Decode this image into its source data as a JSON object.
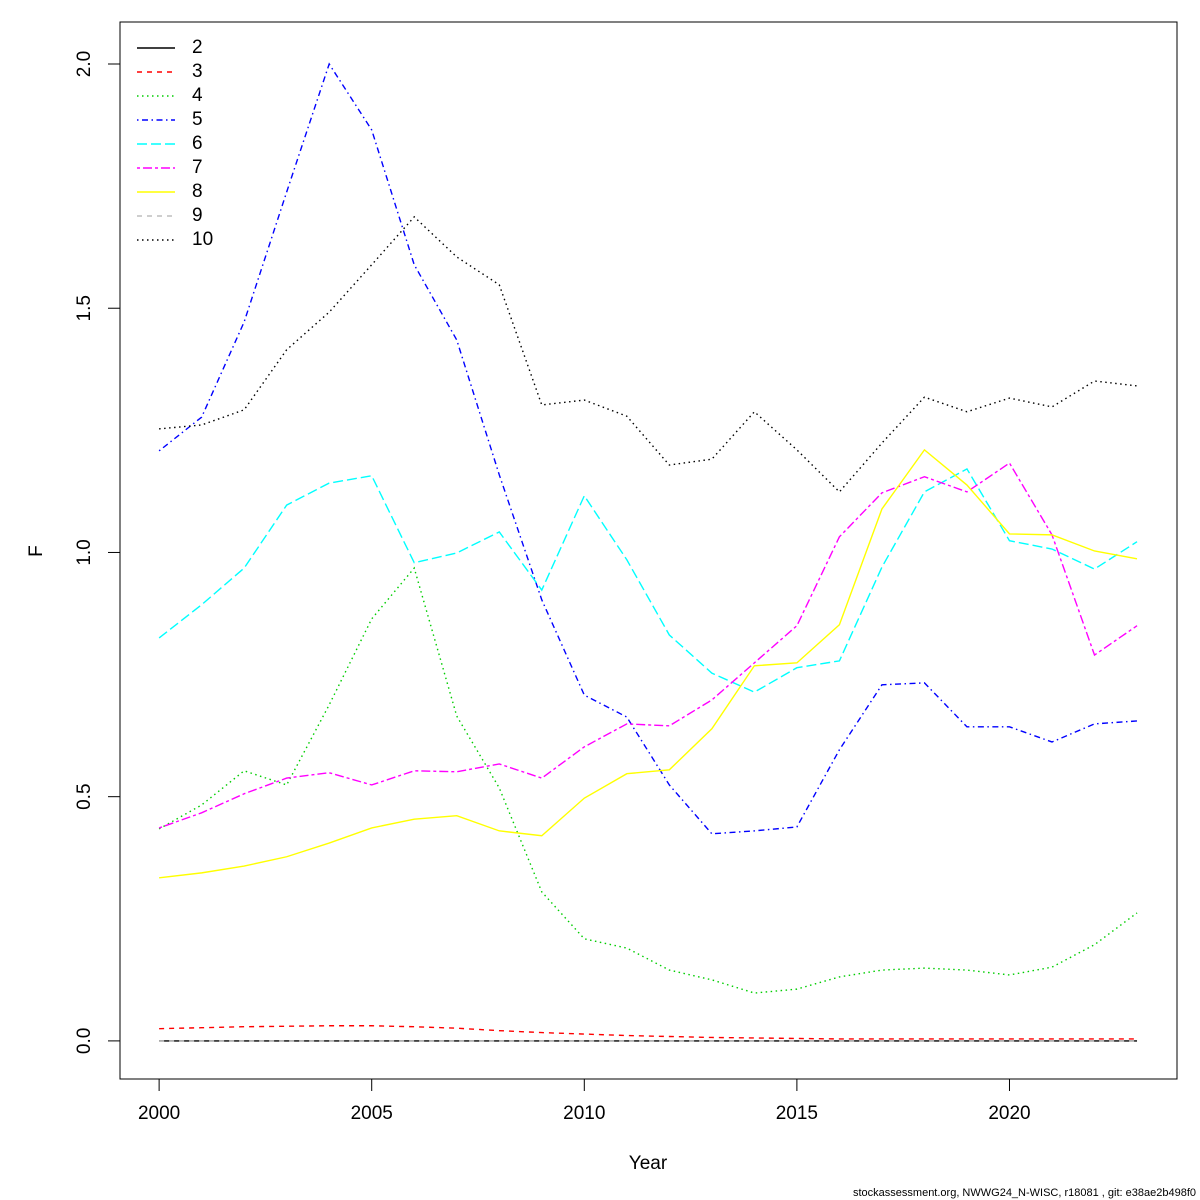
{
  "chart_data": {
    "type": "line",
    "x_label": "Year",
    "y_label": "F",
    "footnote": "stockassessment.org, NWWG24_N-WISC, r18081 , git: e38ae2b498f0",
    "x": [
      2000,
      2001,
      2002,
      2003,
      2004,
      2005,
      2006,
      2007,
      2008,
      2009,
      2010,
      2011,
      2012,
      2013,
      2014,
      2015,
      2016,
      2017,
      2018,
      2019,
      2020,
      2021,
      2022,
      2023
    ],
    "xlim": [
      1999.08,
      2023.94
    ],
    "xticks": [
      2000,
      2005,
      2010,
      2015,
      2020
    ],
    "ylim": [
      -0.078,
      2.086
    ],
    "yticks": [
      {
        "value": 0,
        "label": "0.0"
      },
      0.5,
      {
        "value": 1,
        "label": "1.0"
      },
      1.5,
      {
        "value": 2,
        "label": "2.0"
      }
    ],
    "legend": "top-left",
    "series": [
      {
        "name": "2",
        "color": "#000000",
        "dash": "solid",
        "values": [
          0,
          0,
          0,
          0,
          0,
          0,
          0,
          0,
          0,
          0,
          0,
          0,
          0,
          0,
          0,
          0,
          0,
          0,
          0,
          0,
          0,
          0,
          0,
          0
        ]
      },
      {
        "name": "3",
        "color": "#ff0000",
        "dash": "dashed",
        "values": [
          0.025,
          0.027,
          0.029,
          0.03,
          0.031,
          0.031,
          0.029,
          0.026,
          0.021,
          0.017,
          0.014,
          0.011,
          0.009,
          0.007,
          0.006,
          0.005,
          0.004,
          0.004,
          0.004,
          0.004,
          0.004,
          0.004,
          0.004,
          0.004
        ]
      },
      {
        "name": "4",
        "color": "#00cd00",
        "dash": "dotted",
        "values": [
          0.434,
          0.483,
          0.553,
          0.524,
          0.688,
          0.864,
          0.968,
          0.665,
          0.518,
          0.305,
          0.209,
          0.19,
          0.145,
          0.125,
          0.098,
          0.106,
          0.131,
          0.145,
          0.149,
          0.145,
          0.135,
          0.151,
          0.197,
          0.262
        ]
      },
      {
        "name": "5",
        "color": "#0000ff",
        "dash": "dotdash",
        "values": [
          1.208,
          1.277,
          1.472,
          1.738,
          2.0,
          1.865,
          1.589,
          1.435,
          1.159,
          0.903,
          0.708,
          0.663,
          0.524,
          0.424,
          0.43,
          0.438,
          0.596,
          0.729,
          0.733,
          0.643,
          0.643,
          0.612,
          0.649,
          0.655
        ]
      },
      {
        "name": "6",
        "color": "#00ffff",
        "dash": "longdash",
        "values": [
          0.825,
          0.893,
          0.968,
          1.097,
          1.142,
          1.157,
          0.979,
          0.999,
          1.042,
          0.923,
          1.116,
          0.985,
          0.831,
          0.753,
          0.714,
          0.764,
          0.778,
          0.97,
          1.124,
          1.171,
          1.024,
          1.007,
          0.966,
          1.022
        ]
      },
      {
        "name": "7",
        "color": "#ff00ff",
        "dash": "twodash",
        "values": [
          0.436,
          0.467,
          0.506,
          0.538,
          0.549,
          0.524,
          0.553,
          0.551,
          0.567,
          0.538,
          0.602,
          0.649,
          0.645,
          0.698,
          0.774,
          0.85,
          1.032,
          1.122,
          1.155,
          1.124,
          1.183,
          1.036,
          0.79,
          0.85
        ]
      },
      {
        "name": "8",
        "color": "#ffff00",
        "dash": "solid",
        "values": [
          0.334,
          0.344,
          0.358,
          0.377,
          0.405,
          0.436,
          0.454,
          0.461,
          0.43,
          0.42,
          0.497,
          0.547,
          0.555,
          0.639,
          0.768,
          0.774,
          0.852,
          1.089,
          1.21,
          1.138,
          1.038,
          1.036,
          1.003,
          0.987
        ]
      },
      {
        "name": "9",
        "color": "#bebebe",
        "dash": "dashed",
        "values": [
          0,
          0,
          0,
          0,
          0,
          0,
          0,
          0,
          0,
          0,
          0,
          0,
          0,
          0,
          0,
          0,
          0,
          0,
          0,
          0,
          0,
          0,
          0,
          0
        ]
      },
      {
        "name": "10",
        "color": "#000000",
        "dash": "dotted",
        "values": [
          1.253,
          1.261,
          1.292,
          1.415,
          1.492,
          1.589,
          1.687,
          1.605,
          1.548,
          1.302,
          1.312,
          1.279,
          1.179,
          1.191,
          1.288,
          1.21,
          1.124,
          1.224,
          1.318,
          1.288,
          1.316,
          1.298,
          1.351,
          1.341
        ]
      }
    ]
  }
}
